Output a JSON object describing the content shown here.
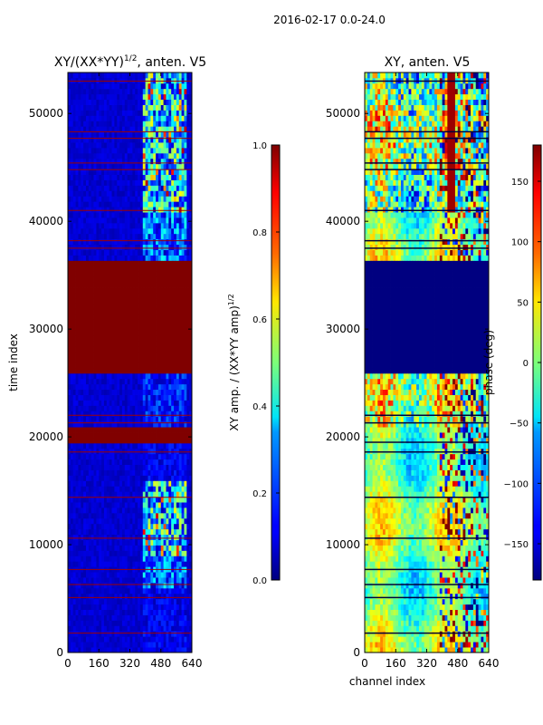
{
  "figure": {
    "suptitle": "2016-02-17 0.0-24.0"
  },
  "chart_data": [
    {
      "type": "heatmap",
      "title": "XY/(XX*YY)",
      "title_exponent": "1/2",
      "title_suffix": ", anten. V5",
      "xlabel": "",
      "ylabel": "time index",
      "xlim": [
        0,
        640
      ],
      "ylim": [
        0,
        53800
      ],
      "x_ticks": [
        0,
        160,
        320,
        480,
        640
      ],
      "y_ticks": [
        0,
        10000,
        20000,
        30000,
        40000,
        50000
      ],
      "colormap": "jet",
      "background_value": 0.05,
      "saturated_blocks": [
        {
          "t_start": 26000,
          "t_end": 36300,
          "value": 1.0
        },
        {
          "t_start": 19500,
          "t_end": 20800,
          "value": 1.0
        }
      ],
      "flag_rows": [
        53000,
        48300,
        47700,
        45400,
        44800,
        41000,
        38200,
        37500,
        22000,
        21300,
        18600,
        14400,
        10600,
        7700,
        6300,
        5100,
        1800
      ],
      "high_amplitude_channels": [
        390,
        420,
        450,
        470,
        500,
        530,
        560,
        600
      ],
      "colorbar": {
        "label": "XY amp. / (XX*YY amp)",
        "label_exponent": "1/2",
        "range": [
          0.0,
          1.0
        ],
        "ticks": [
          "0.0",
          "0.2",
          "0.4",
          "0.6",
          "0.8",
          "1.0"
        ]
      }
    },
    {
      "type": "heatmap",
      "title": "XY, anten. V5",
      "xlabel": "channel index",
      "ylabel": "",
      "xlim": [
        0,
        640
      ],
      "ylim": [
        0,
        53800
      ],
      "x_ticks": [
        0,
        160,
        320,
        480,
        640
      ],
      "y_ticks": [
        0,
        10000,
        20000,
        30000,
        40000,
        50000
      ],
      "colormap": "jet",
      "constant_phase_block": {
        "t_start": 26000,
        "t_end": 36300,
        "value": -180
      },
      "flag_rows": [
        53000,
        48300,
        47700,
        45400,
        44800,
        41000,
        38200,
        37500,
        22000,
        21300,
        19500,
        18600,
        14400,
        10600,
        7700,
        6300,
        5100,
        1800
      ],
      "colorbar": {
        "label": "phase (deg)",
        "range": [
          -180,
          180
        ],
        "ticks": [
          "−150",
          "−100",
          "−50",
          "0",
          "50",
          "100",
          "150"
        ]
      }
    }
  ]
}
